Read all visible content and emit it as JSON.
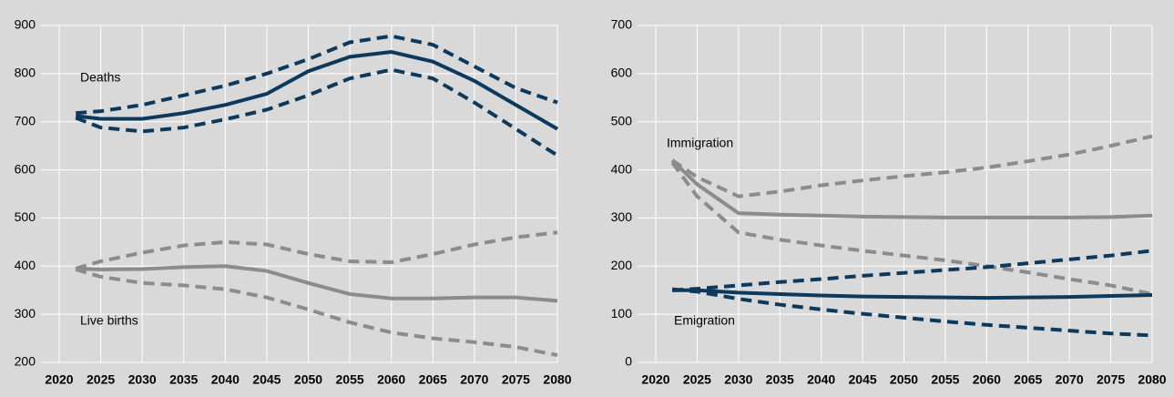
{
  "chart_data": [
    {
      "type": "line",
      "annotations": [
        "Deaths",
        "Live births"
      ],
      "x": [
        2022,
        2025,
        2030,
        2035,
        2040,
        2045,
        2050,
        2055,
        2060,
        2065,
        2070,
        2075,
        2080
      ],
      "xlim": [
        2020,
        2080
      ],
      "xticks": [
        2020,
        2025,
        2030,
        2035,
        2040,
        2045,
        2050,
        2055,
        2060,
        2065,
        2070,
        2075,
        2080
      ],
      "ylim": [
        200,
        900
      ],
      "yticks": [
        200,
        300,
        400,
        500,
        600,
        700,
        800,
        900
      ],
      "grid": true,
      "series": [
        {
          "color": "#0d3a5c",
          "style": "solid",
          "values": [
            712,
            706,
            706,
            718,
            735,
            758,
            805,
            835,
            845,
            825,
            785,
            735,
            685
          ]
        },
        {
          "color": "#0d3a5c",
          "style": "dashed",
          "values": [
            718,
            722,
            735,
            755,
            775,
            800,
            830,
            865,
            878,
            860,
            815,
            770,
            740
          ]
        },
        {
          "color": "#0d3a5c",
          "style": "dashed",
          "values": [
            708,
            688,
            680,
            688,
            705,
            725,
            755,
            790,
            808,
            790,
            740,
            685,
            630
          ]
        },
        {
          "color": "#8c8c8c",
          "style": "solid",
          "values": [
            395,
            393,
            394,
            398,
            400,
            390,
            365,
            342,
            333,
            333,
            335,
            335,
            328
          ]
        },
        {
          "color": "#8c8c8c",
          "style": "dashed",
          "values": [
            395,
            410,
            428,
            443,
            450,
            445,
            425,
            410,
            408,
            425,
            445,
            460,
            470
          ]
        },
        {
          "color": "#8c8c8c",
          "style": "dashed",
          "values": [
            393,
            378,
            365,
            360,
            352,
            335,
            310,
            283,
            262,
            250,
            242,
            232,
            215
          ]
        }
      ]
    },
    {
      "type": "line",
      "annotations": [
        "Immigration",
        "Emigration"
      ],
      "x": [
        2022,
        2025,
        2030,
        2035,
        2040,
        2045,
        2050,
        2055,
        2060,
        2065,
        2070,
        2075,
        2080
      ],
      "xlim": [
        2020,
        2080
      ],
      "xticks": [
        2020,
        2025,
        2030,
        2035,
        2040,
        2045,
        2050,
        2055,
        2060,
        2065,
        2070,
        2075,
        2080
      ],
      "ylim": [
        0,
        700
      ],
      "yticks": [
        0,
        100,
        200,
        300,
        400,
        500,
        600,
        700
      ],
      "grid": true,
      "series": [
        {
          "color": "#8c8c8c",
          "style": "solid",
          "values": [
            420,
            370,
            310,
            307,
            305,
            303,
            302,
            301,
            301,
            301,
            301,
            302,
            305
          ]
        },
        {
          "color": "#8c8c8c",
          "style": "dashed",
          "values": [
            420,
            385,
            345,
            355,
            368,
            378,
            387,
            395,
            405,
            418,
            432,
            450,
            470
          ]
        },
        {
          "color": "#8c8c8c",
          "style": "dashed",
          "values": [
            415,
            345,
            270,
            255,
            243,
            232,
            222,
            212,
            200,
            187,
            173,
            160,
            142
          ]
        },
        {
          "color": "#0d3a5c",
          "style": "solid",
          "values": [
            150,
            150,
            145,
            142,
            139,
            137,
            136,
            135,
            134,
            135,
            136,
            138,
            140
          ]
        },
        {
          "color": "#0d3a5c",
          "style": "dashed",
          "values": [
            150,
            153,
            160,
            167,
            173,
            180,
            186,
            192,
            198,
            206,
            214,
            222,
            232
          ]
        },
        {
          "color": "#0d3a5c",
          "style": "dashed",
          "values": [
            152,
            147,
            132,
            120,
            110,
            101,
            93,
            85,
            78,
            72,
            66,
            60,
            56
          ]
        }
      ]
    }
  ]
}
